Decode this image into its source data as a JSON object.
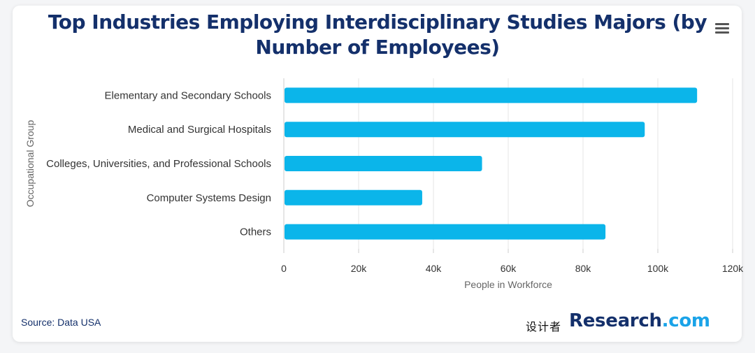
{
  "header": {
    "title_line1": "Top Industries Employing Interdisciplinary Studies Majors (by",
    "title_line2": "Number of Employees)",
    "menu_icon": "hamburger-menu-icon"
  },
  "colors": {
    "bar": "#0bb5ea",
    "title": "#14306b",
    "grid": "#e6e6e6",
    "accent": "#1aa3e8"
  },
  "chart_data": {
    "type": "bar",
    "orientation": "horizontal",
    "title": "Top Industries Employing Interdisciplinary Studies Majors (by Number of Employees)",
    "categories": [
      "Elementary and Secondary Schools",
      "Medical and Surgical Hospitals",
      "Colleges, Universities, and Professional Schools",
      "Computer Systems Design",
      "Others"
    ],
    "values": [
      110500,
      96500,
      53000,
      37000,
      86000
    ],
    "xlabel": "People in Workforce",
    "ylabel": "Occupational Group",
    "xlim": [
      0,
      120000
    ],
    "xticks": [
      0,
      20000,
      40000,
      60000,
      80000,
      100000,
      120000
    ],
    "xtick_labels": [
      "0",
      "20k",
      "40k",
      "60k",
      "80k",
      "100k",
      "120k"
    ],
    "grid": true,
    "legend": false
  },
  "footer": {
    "source": "Source: Data USA",
    "brand_cn": "设计者",
    "brand_part1": "Research",
    "brand_part2": ".com"
  }
}
